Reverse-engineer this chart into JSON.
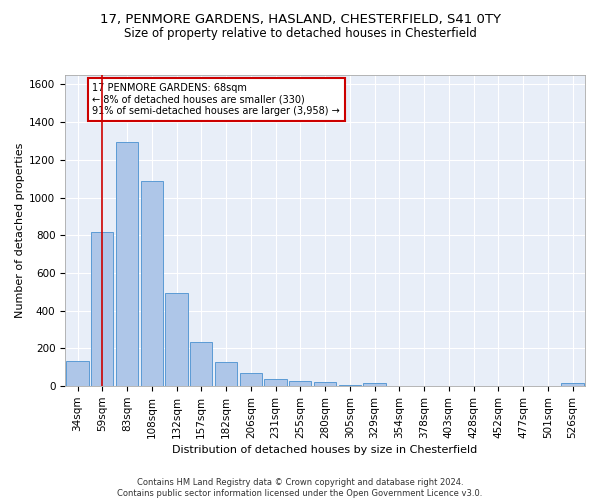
{
  "title_line1": "17, PENMORE GARDENS, HASLAND, CHESTERFIELD, S41 0TY",
  "title_line2": "Size of property relative to detached houses in Chesterfield",
  "xlabel": "Distribution of detached houses by size in Chesterfield",
  "ylabel": "Number of detached properties",
  "footer": "Contains HM Land Registry data © Crown copyright and database right 2024.\nContains public sector information licensed under the Open Government Licence v3.0.",
  "bin_labels": [
    "34sqm",
    "59sqm",
    "83sqm",
    "108sqm",
    "132sqm",
    "157sqm",
    "182sqm",
    "206sqm",
    "231sqm",
    "255sqm",
    "280sqm",
    "305sqm",
    "329sqm",
    "354sqm",
    "378sqm",
    "403sqm",
    "428sqm",
    "452sqm",
    "477sqm",
    "501sqm",
    "526sqm"
  ],
  "bar_heights": [
    135,
    815,
    1295,
    1090,
    495,
    232,
    130,
    68,
    40,
    27,
    22,
    5,
    15,
    0,
    0,
    0,
    0,
    0,
    0,
    0,
    15
  ],
  "bar_color": "#aec6e8",
  "bar_edgecolor": "#5b9bd5",
  "vline_x": 1.0,
  "vline_color": "#cc0000",
  "annotation_text": "17 PENMORE GARDENS: 68sqm\n← 8% of detached houses are smaller (330)\n91% of semi-detached houses are larger (3,958) →",
  "annotation_box_color": "#ffffff",
  "annotation_box_edgecolor": "#cc0000",
  "ylim": [
    0,
    1650
  ],
  "yticks": [
    0,
    200,
    400,
    600,
    800,
    1000,
    1200,
    1400,
    1600
  ],
  "background_color": "#e8eef8",
  "grid_color": "#ffffff",
  "title_fontsize": 9.5,
  "subtitle_fontsize": 8.5,
  "axis_label_fontsize": 8,
  "tick_fontsize": 7.5,
  "footer_fontsize": 6,
  "annotation_fontsize": 7
}
